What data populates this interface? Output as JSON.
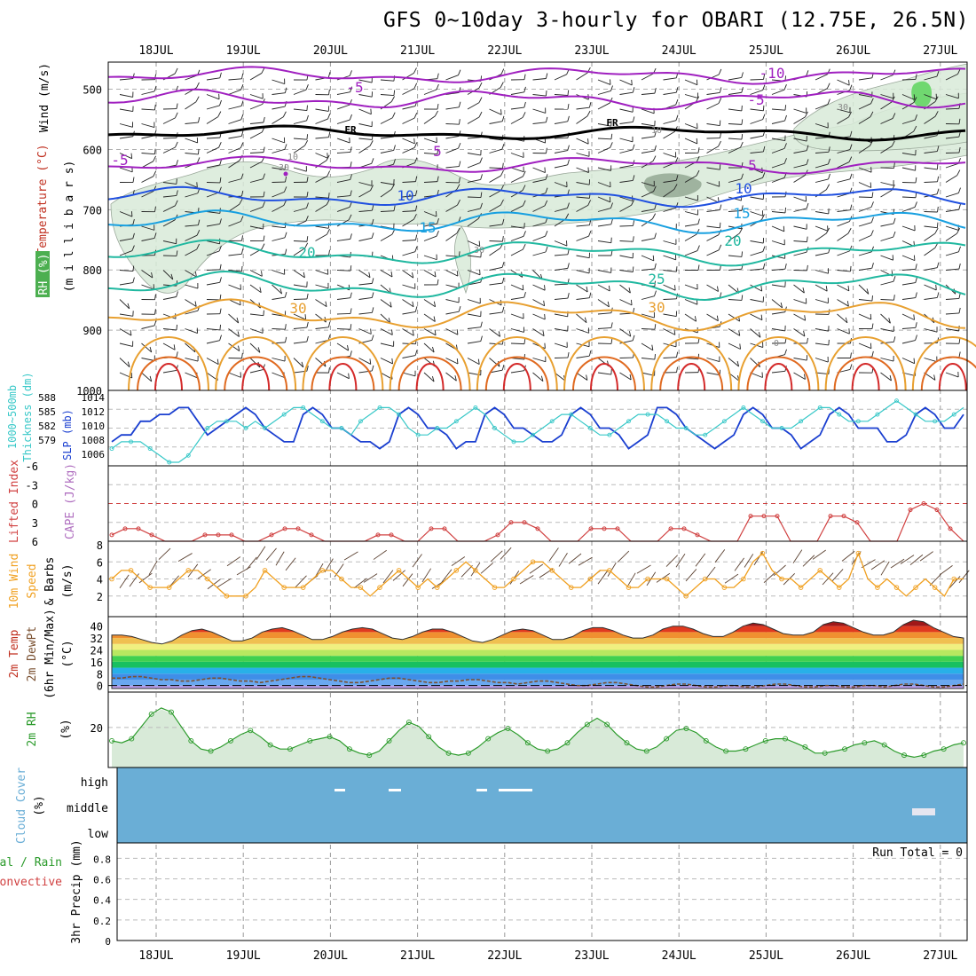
{
  "title": "GFS 0~10day 3-hourly for OBARI (12.75E, 26.5N)",
  "dates": [
    "18JUL",
    "19JUL",
    "20JUL",
    "21JUL",
    "22JUL",
    "23JUL",
    "24JUL",
    "25JUL",
    "26JUL",
    "27JUL"
  ],
  "colors": {
    "temp_warm": "#e8a030",
    "temp_hot": "#e06a20",
    "temp_very_hot": "#d42a2a",
    "temp_mild": "#20b8a0",
    "temp_cool": "#18a0e0",
    "temp_cold": "#2050e0",
    "temp_freezing": "#a020c0",
    "freezing_line": "#000000",
    "slp": "#1a3fd0",
    "thickness": "#38c8c8",
    "cape": "#d04040",
    "wind10m": "#f0a020",
    "rh": "#2a9a2a",
    "rh_fill": "#d8ead8",
    "cloud": "#6aaed6"
  },
  "panels": {
    "upper": {
      "labels": [
        "Wind (m/s)",
        "Temperature (°C)",
        "RH (%)",
        "(m i l l i b a r s)"
      ],
      "yticks": [
        "500",
        "600",
        "700",
        "800",
        "900",
        "1000"
      ],
      "contour_labels": [
        "-10",
        "-5",
        "-5",
        "-5",
        "FR",
        "FR",
        "5",
        "5",
        "10",
        "10",
        "15",
        "15",
        "20",
        "20",
        "25",
        "30",
        "30",
        "30",
        "30",
        "30",
        "10",
        "10",
        "0"
      ]
    },
    "slp": {
      "labels": [
        "1000~500mb",
        "Thickness (dm)",
        "SLP (mb)"
      ],
      "yticks_left": [
        "588",
        "585",
        "582",
        "579"
      ],
      "yticks_right": [
        "1014",
        "1012",
        "1010",
        "1008",
        "1006"
      ]
    },
    "cape": {
      "labels": [
        "Lifted Index",
        "CAPE (J/kg)"
      ],
      "yticks": [
        "-6",
        "-3",
        "0",
        "3",
        "6"
      ]
    },
    "wind": {
      "labels": [
        "10m Wind",
        "Speed",
        "& Barbs",
        "(m/s)"
      ],
      "yticks": [
        "8",
        "6",
        "4",
        "2"
      ]
    },
    "temp": {
      "labels": [
        "2m Temp",
        "2m DewPt",
        "(6hr Min/Max)",
        "(°C)"
      ],
      "yticks": [
        "40",
        "32",
        "24",
        "16",
        "8",
        "0"
      ]
    },
    "rh": {
      "labels": [
        "2m RH",
        "(%)"
      ],
      "yticks": [
        "20"
      ]
    },
    "cloud": {
      "labels": [
        "Cloud Cover",
        "(%)"
      ],
      "levels": [
        "high",
        "middle",
        "low"
      ]
    },
    "precip": {
      "labels": [
        "Total / Rain",
        "Convective",
        "3hr Precip (mm)"
      ],
      "yticks": [
        "0.8",
        "0.6",
        "0.4",
        "0.2",
        "0"
      ],
      "run_total": "Run Total = 0"
    }
  },
  "chart_data": [
    {
      "type": "line",
      "title": "SLP (mb)",
      "x_unit": "3-hourly steps",
      "ylim": [
        1005,
        1015
      ],
      "values": [
        1008,
        1009,
        1009,
        1011,
        1011,
        1012,
        1012,
        1013,
        1013,
        1011,
        1009,
        1010,
        1011,
        1012,
        1013,
        1012,
        1010,
        1009,
        1008,
        1008,
        1012,
        1013,
        1012,
        1010,
        1010,
        1009,
        1008,
        1008,
        1007,
        1008,
        1012,
        1013,
        1012,
        1010,
        1010,
        1009,
        1007,
        1008,
        1008,
        1012,
        1013,
        1012,
        1010,
        1010,
        1009,
        1008,
        1008,
        1009,
        1012,
        1013,
        1012,
        1010,
        1010,
        1009,
        1007,
        1008,
        1009,
        1013,
        1013,
        1012,
        1010,
        1009,
        1008,
        1007,
        1008,
        1009,
        1012,
        1013,
        1012,
        1010,
        1010,
        1009,
        1007,
        1008,
        1009,
        1012,
        1013,
        1012,
        1010,
        1010,
        1010,
        1008,
        1008,
        1009,
        1012,
        1013,
        1012,
        1010,
        1010,
        1012
      ]
    },
    {
      "type": "line",
      "title": "1000~500mb Thickness (dm)",
      "ylim": [
        578,
        588
      ],
      "values": [
        580,
        581,
        581,
        581,
        580,
        579,
        578,
        578,
        579,
        581,
        583,
        584,
        584,
        584,
        583,
        584,
        583,
        584,
        585,
        586,
        586,
        585,
        584,
        583,
        583,
        582,
        584,
        585,
        586,
        586,
        585,
        583,
        582,
        582,
        583,
        583,
        584,
        585,
        586,
        585,
        583,
        582,
        581,
        581,
        582,
        583,
        584,
        585,
        585,
        584,
        583,
        582,
        582,
        583,
        584,
        585,
        585,
        585,
        584,
        583,
        583,
        582,
        582,
        583,
        584,
        585,
        586,
        585,
        584,
        583,
        583,
        583,
        584,
        585,
        586,
        586,
        585,
        584,
        584,
        584,
        585,
        586,
        587,
        586,
        585,
        584,
        584,
        584,
        585,
        586
      ]
    },
    {
      "type": "line",
      "title": "Lifted Index / CAPE",
      "ylim": [
        -6,
        6
      ],
      "values": [
        5,
        4,
        4,
        5,
        6,
        6,
        6,
        5,
        5,
        5,
        6,
        6,
        5,
        4,
        4,
        5,
        6,
        6,
        6,
        6,
        5,
        5,
        6,
        6,
        4,
        4,
        6,
        6,
        6,
        5,
        3,
        3,
        4,
        6,
        6,
        6,
        4,
        4,
        4,
        6,
        6,
        6,
        4,
        4,
        5,
        6,
        6,
        6,
        2,
        2,
        2,
        6,
        6,
        6,
        2,
        2,
        3,
        6,
        6,
        6,
        1,
        0,
        1,
        4,
        6
      ]
    },
    {
      "type": "line",
      "title": "10m Wind Speed (m/s)",
      "ylim": [
        0,
        8
      ],
      "values": [
        4,
        5,
        5,
        4,
        3,
        3,
        3,
        4,
        5,
        5,
        4,
        3,
        2,
        2,
        2,
        3,
        5,
        4,
        3,
        3,
        3,
        4,
        5,
        5,
        4,
        3,
        3,
        2,
        3,
        4,
        5,
        4,
        3,
        4,
        3,
        4,
        5,
        6,
        5,
        4,
        3,
        3,
        4,
        5,
        6,
        6,
        5,
        4,
        3,
        3,
        4,
        5,
        5,
        4,
        3,
        3,
        4,
        4,
        4,
        3,
        2,
        3,
        4,
        4,
        3,
        3,
        4,
        6,
        7,
        5,
        4,
        4,
        3,
        4,
        5,
        4,
        3,
        4,
        7,
        4,
        3,
        4,
        3,
        2,
        3,
        4,
        3,
        2,
        4,
        4
      ]
    },
    {
      "type": "area",
      "title": "2m Temp (°C)",
      "ylim": [
        -2,
        44
      ],
      "values": [
        34,
        34,
        33,
        31,
        29,
        28,
        30,
        34,
        37,
        38,
        36,
        33,
        30,
        30,
        32,
        36,
        38,
        39,
        37,
        34,
        31,
        31,
        33,
        36,
        38,
        39,
        38,
        35,
        32,
        31,
        33,
        36,
        38,
        38,
        36,
        33,
        30,
        29,
        31,
        34,
        37,
        38,
        37,
        34,
        31,
        31,
        33,
        37,
        39,
        39,
        37,
        34,
        32,
        32,
        34,
        38,
        40,
        40,
        38,
        35,
        33,
        33,
        36,
        40,
        42,
        41,
        38,
        35,
        34,
        34,
        36,
        41,
        43,
        42,
        39,
        36,
        34,
        34,
        36,
        41,
        44,
        43,
        39,
        36,
        33,
        32
      ]
    },
    {
      "type": "line",
      "title": "2m DewPt (°C)",
      "ylim": [
        -2,
        44
      ],
      "values": [
        5,
        5,
        6,
        6,
        5,
        4,
        4,
        3,
        3,
        4,
        5,
        5,
        4,
        3,
        3,
        2,
        3,
        4,
        5,
        6,
        6,
        5,
        4,
        3,
        2,
        2,
        3,
        4,
        5,
        5,
        4,
        3,
        2,
        2,
        3,
        3,
        4,
        4,
        3,
        2,
        2,
        1,
        2,
        3,
        3,
        2,
        1,
        0,
        0,
        1,
        2,
        2,
        1,
        0,
        -1,
        -1,
        0,
        1,
        1,
        0,
        -1,
        -1,
        0,
        0,
        -1,
        -1,
        0,
        1,
        1,
        0,
        -1,
        -1,
        0,
        0,
        -1,
        -1,
        0,
        0,
        -1,
        0,
        1,
        1,
        0,
        -1,
        -1,
        0,
        1
      ]
    },
    {
      "type": "line",
      "title": "2m RH (%)",
      "ylim": [
        0,
        35
      ],
      "values": [
        13,
        12,
        14,
        20,
        26,
        29,
        27,
        20,
        13,
        9,
        8,
        10,
        13,
        16,
        18,
        15,
        11,
        9,
        9,
        11,
        13,
        14,
        15,
        13,
        9,
        7,
        6,
        8,
        13,
        18,
        22,
        20,
        15,
        10,
        7,
        6,
        7,
        10,
        14,
        17,
        19,
        16,
        12,
        9,
        8,
        9,
        12,
        17,
        21,
        24,
        21,
        16,
        12,
        9,
        8,
        10,
        14,
        18,
        19,
        17,
        13,
        10,
        8,
        8,
        9,
        11,
        13,
        14,
        14,
        12,
        10,
        7,
        7,
        8,
        9,
        11,
        12,
        13,
        11,
        8,
        6,
        5,
        6,
        8,
        9,
        11,
        12
      ]
    },
    {
      "type": "table",
      "title": "Cloud Cover (%)",
      "series": [
        {
          "name": "high",
          "values": [
            "20JUL",
            "20JUL",
            "21JUL",
            "21JUL",
            "22JUL"
          ]
        },
        {
          "name": "middle",
          "values": [
            "27JUL"
          ]
        }
      ]
    },
    {
      "type": "bar",
      "title": "3hr Precip (mm)",
      "ylim": [
        0,
        0.95
      ],
      "values": [
        0,
        0,
        0,
        0,
        0,
        0,
        0,
        0,
        0,
        0
      ],
      "categories": [
        "18JUL",
        "19JUL",
        "20JUL",
        "21JUL",
        "22JUL",
        "23JUL",
        "24JUL",
        "25JUL",
        "26JUL",
        "27JUL"
      ]
    }
  ]
}
